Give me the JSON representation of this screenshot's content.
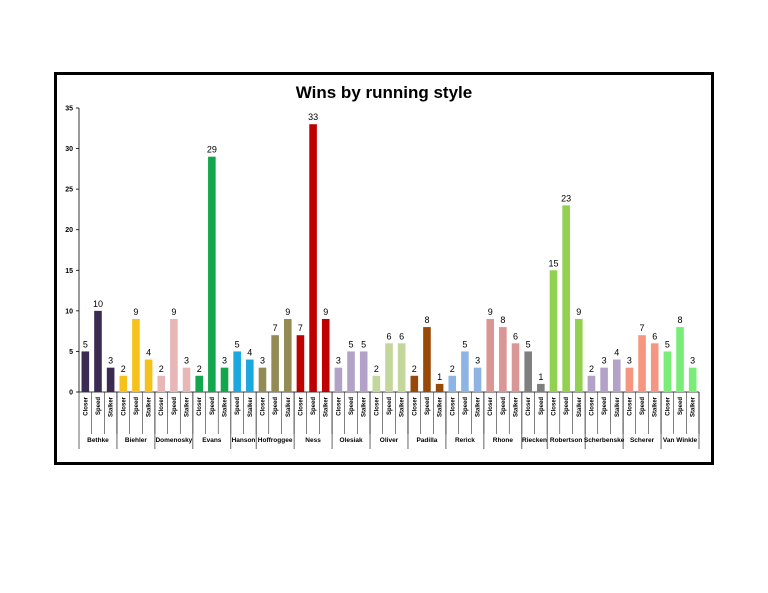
{
  "chart_data": {
    "type": "bar",
    "title": "Wins by running style",
    "xlabel": "",
    "ylabel": "",
    "ylim": [
      0,
      35
    ],
    "yticks": [
      0,
      5,
      10,
      15,
      20,
      25,
      30,
      35
    ],
    "grid": false,
    "legend": "none",
    "groups": [
      {
        "name": "Bethke",
        "color": "#3b2a52",
        "bars": [
          {
            "category": "Closer",
            "value": 5
          },
          {
            "category": "Speed",
            "value": 10
          },
          {
            "category": "Stalker",
            "value": 3
          }
        ]
      },
      {
        "name": "Biehler",
        "color": "#f5c11a",
        "bars": [
          {
            "category": "Closer",
            "value": 2
          },
          {
            "category": "Speed",
            "value": 9
          },
          {
            "category": "Stalker",
            "value": 4
          }
        ]
      },
      {
        "name": "Domenosky",
        "color": "#e6b7b6",
        "bars": [
          {
            "category": "Closer",
            "value": 2
          },
          {
            "category": "Speed",
            "value": 9
          },
          {
            "category": "Stalker",
            "value": 3
          }
        ]
      },
      {
        "name": "Evans",
        "color": "#12a64d",
        "bars": [
          {
            "category": "Closer",
            "value": 2
          },
          {
            "category": "Speed",
            "value": 29
          },
          {
            "category": "Stalker",
            "value": 3
          }
        ]
      },
      {
        "name": "Hanson",
        "color": "#1aa8df",
        "bars": [
          {
            "category": "Speed",
            "value": 5
          },
          {
            "category": "Stalker",
            "value": 4
          }
        ]
      },
      {
        "name": "Hoffroggee",
        "color": "#948a54",
        "bars": [
          {
            "category": "Closer",
            "value": 3
          },
          {
            "category": "Speed",
            "value": 7
          },
          {
            "category": "Stalker",
            "value": 9
          }
        ]
      },
      {
        "name": "Ness",
        "color": "#c00000",
        "bars": [
          {
            "category": "Closer",
            "value": 7
          },
          {
            "category": "Speed",
            "value": 33
          },
          {
            "category": "Stalker",
            "value": 9
          }
        ]
      },
      {
        "name": "Olesiak",
        "color": "#b3a2c7",
        "bars": [
          {
            "category": "Closer",
            "value": 3
          },
          {
            "category": "Speed",
            "value": 5
          },
          {
            "category": "Stalker",
            "value": 5
          }
        ]
      },
      {
        "name": "Oliver",
        "color": "#c3d69b",
        "bars": [
          {
            "category": "Closer",
            "value": 2
          },
          {
            "category": "Speed",
            "value": 6
          },
          {
            "category": "Stalker",
            "value": 6
          }
        ]
      },
      {
        "name": "Padilla",
        "color": "#984807",
        "bars": [
          {
            "category": "Closer",
            "value": 2
          },
          {
            "category": "Speed",
            "value": 8
          },
          {
            "category": "Stalker",
            "value": 1
          }
        ]
      },
      {
        "name": "Rerick",
        "color": "#8eb4e3",
        "bars": [
          {
            "category": "Closer",
            "value": 2
          },
          {
            "category": "Speed",
            "value": 5
          },
          {
            "category": "Stalker",
            "value": 3
          }
        ]
      },
      {
        "name": "Rhone",
        "color": "#d99694",
        "bars": [
          {
            "category": "Closer",
            "value": 9
          },
          {
            "category": "Speed",
            "value": 8
          },
          {
            "category": "Stalker",
            "value": 6
          }
        ]
      },
      {
        "name": "Riecken",
        "color": "#7f7f7f",
        "bars": [
          {
            "category": "Closer",
            "value": 5
          },
          {
            "category": "Speed",
            "value": 1
          }
        ]
      },
      {
        "name": "Robertson",
        "color": "#92d050",
        "bars": [
          {
            "category": "Closer",
            "value": 15
          },
          {
            "category": "Speed",
            "value": 23
          },
          {
            "category": "Stalker",
            "value": 9
          }
        ]
      },
      {
        "name": "Scherbenske",
        "color": "#b3a2c7",
        "bars": [
          {
            "category": "Closer",
            "value": 2
          },
          {
            "category": "Speed",
            "value": 3
          },
          {
            "category": "Stalker",
            "value": 4
          }
        ]
      },
      {
        "name": "Scherer",
        "color": "#f79680",
        "bars": [
          {
            "category": "Closer",
            "value": 3
          },
          {
            "category": "Speed",
            "value": 7
          },
          {
            "category": "Stalker",
            "value": 6
          }
        ]
      },
      {
        "name": "Van Winkle",
        "color": "#78ee78",
        "bars": [
          {
            "category": "Closer",
            "value": 5
          },
          {
            "category": "Speed",
            "value": 8
          },
          {
            "category": "Stalker",
            "value": 3
          }
        ]
      }
    ]
  }
}
